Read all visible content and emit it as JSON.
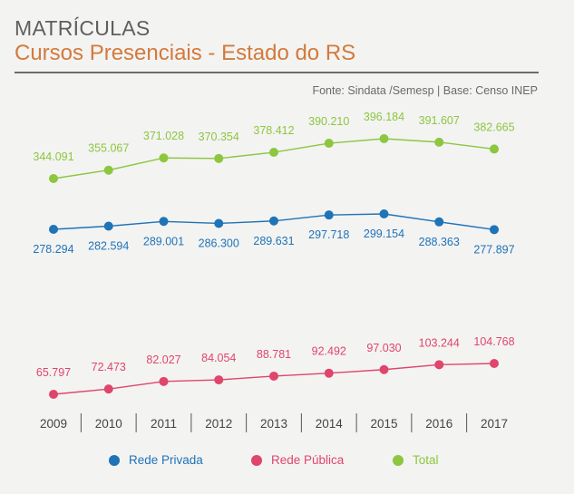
{
  "header": {
    "title": "MATRÍCULAS",
    "subtitle": "Cursos Presenciais - Estado do RS",
    "source": "Fonte: Sindata /Semesp | Base: Censo INEP"
  },
  "colors": {
    "privada": "#1f73b7",
    "publica": "#e0456b",
    "total": "#8dc63f",
    "axis": "#444444",
    "title": "#5f5f5f",
    "subtitle": "#d37a3b"
  },
  "chart_data": {
    "type": "line",
    "title": "Cursos Presenciais - Estado do RS",
    "x": [
      "2009",
      "2010",
      "2011",
      "2012",
      "2013",
      "2014",
      "2015",
      "2016",
      "2017"
    ],
    "series": [
      {
        "name": "Rede Privada",
        "values": [
          278294,
          282594,
          289001,
          286300,
          289631,
          297718,
          299154,
          288363,
          277897
        ],
        "labels": [
          "278.294",
          "282.594",
          "289.001",
          "286.300",
          "289.631",
          "297.718",
          "299.154",
          "288.363",
          "277.897"
        ]
      },
      {
        "name": "Rede Pública",
        "values": [
          65797,
          72473,
          82027,
          84054,
          88781,
          92492,
          97030,
          103244,
          104768
        ],
        "labels": [
          "65.797",
          "72.473",
          "82.027",
          "84.054",
          "88.781",
          "92.492",
          "97.030",
          "103.244",
          "104.768"
        ]
      },
      {
        "name": "Total",
        "values": [
          344091,
          355067,
          371028,
          370354,
          378412,
          390210,
          396184,
          391607,
          382665
        ],
        "labels": [
          "344.091",
          "355.067",
          "371.028",
          "370.354",
          "378.412",
          "390.210",
          "396.184",
          "391.607",
          "382.665"
        ]
      }
    ],
    "legend_position": "bottom",
    "grid": false
  }
}
